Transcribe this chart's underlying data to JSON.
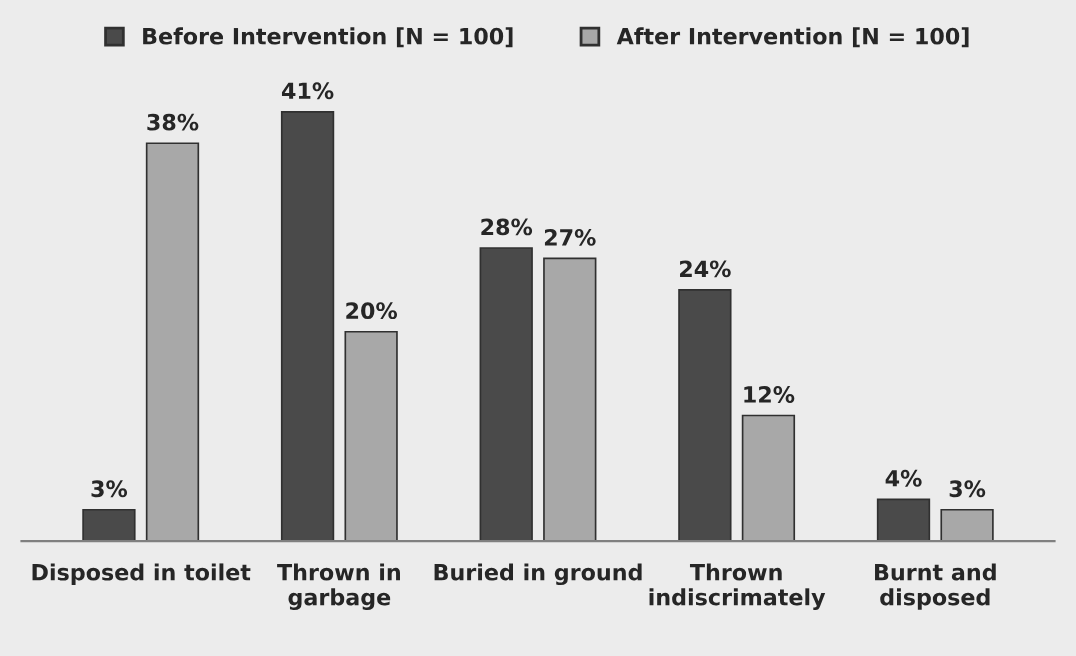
{
  "chart_data": {
    "type": "bar",
    "categories": [
      "Disposed in toilet",
      "Thrown in\ngarbage",
      "Buried in ground",
      "Thrown\nindiscrimately",
      "Burnt and\ndisposed"
    ],
    "series": [
      {
        "name": "Before Intervention [N = 100]",
        "color": "#4a4a4a",
        "values": [
          3,
          41,
          28,
          24,
          4
        ],
        "value_labels": [
          "3%",
          "41%",
          "28%",
          "24%",
          "4%"
        ]
      },
      {
        "name": "After Intervention [N = 100]",
        "color": "#a8a8a8",
        "values": [
          38,
          20,
          27,
          12,
          3
        ],
        "value_labels": [
          "38%",
          "20%",
          "27%",
          "12%",
          "3%"
        ]
      }
    ],
    "legend": "top",
    "grid": false
  }
}
